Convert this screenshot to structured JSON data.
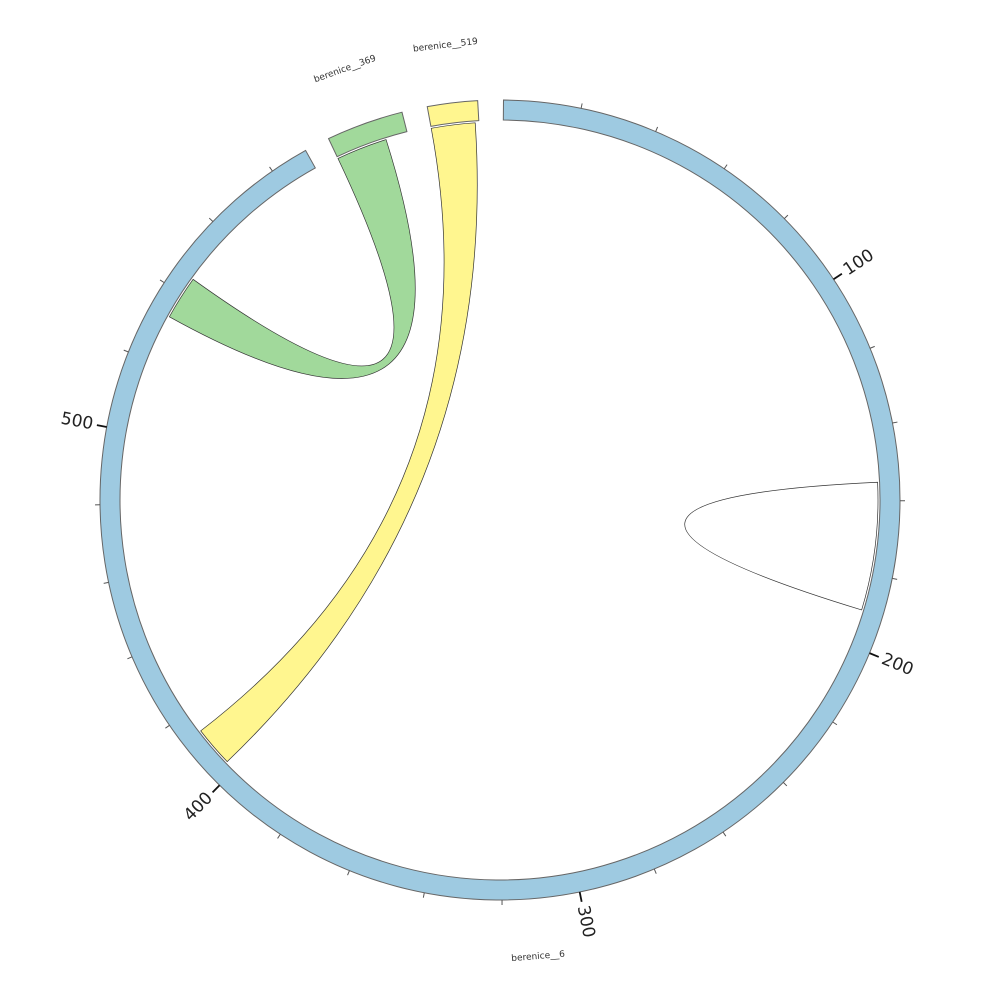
{
  "diagram": {
    "segments": [
      {
        "name": "berenice__6",
        "length": 590,
        "color": "#9ecae1"
      },
      {
        "name": "berenice__369",
        "length": 20,
        "color": "#a1d99b"
      },
      {
        "name": "berenice__519",
        "length": 13,
        "color": "#fff68f"
      }
    ],
    "tick_labels": [
      "100",
      "200",
      "300",
      "400",
      "500"
    ],
    "links": [
      {
        "source": {
          "segment": "berenice__369",
          "from": 0,
          "to": 14
        },
        "target": {
          "segment": "berenice__6",
          "from": 533,
          "to": 545
        },
        "color": "#a1d99b"
      },
      {
        "source": {
          "segment": "berenice__519",
          "from": 0,
          "to": 12
        },
        "target": {
          "segment": "berenice__6",
          "from": 403,
          "to": 414
        },
        "color": "#fff68f"
      },
      {
        "source": {
          "segment": "berenice__6",
          "from": 155,
          "to": 190
        },
        "target": {
          "segment": "berenice__6",
          "from": 155,
          "to": 190
        },
        "color": "#ffffff"
      }
    ]
  }
}
